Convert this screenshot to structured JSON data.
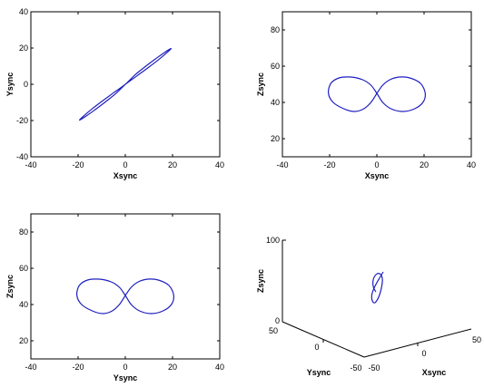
{
  "figure": {
    "line_color": "#1f1fbf"
  },
  "chart_data": [
    {
      "type": "line",
      "xlabel": "Xsync",
      "ylabel": "Ysync",
      "xlim": [
        -40,
        40
      ],
      "ylim": [
        -40,
        40
      ],
      "xticks": [
        "-40",
        "-20",
        "0",
        "20",
        "40"
      ],
      "yticks": [
        "-40",
        "-20",
        "0",
        "20",
        "40"
      ],
      "series": [
        {
          "x": [
            0,
            4.9,
            9.7,
            14.1,
            17.4,
            19.2,
            19.1,
            17.0,
            13.4,
            8.9,
            4.2,
            0,
            -4.9,
            -9.7,
            -14.1,
            -17.4,
            -19.2,
            -19.1,
            -17.0,
            -13.4,
            -8.9,
            -4.2,
            0
          ],
          "y": [
            0,
            4.6,
            9.2,
            13.6,
            17.2,
            19.4,
            19.6,
            17.9,
            14.6,
            10.2,
            5.3,
            0,
            -4.6,
            -9.2,
            -13.6,
            -17.2,
            -19.4,
            -19.6,
            -17.9,
            -14.6,
            -10.2,
            -5.3,
            0
          ]
        }
      ]
    },
    {
      "type": "line",
      "xlabel": "Xsync",
      "ylabel": "Zsync",
      "xlim": [
        -40,
        40
      ],
      "ylim": [
        10,
        90
      ],
      "xticks": [
        "-40",
        "-20",
        "0",
        "20",
        "40"
      ],
      "yticks": [
        "20",
        "40",
        "60",
        "80"
      ],
      "series": [
        {
          "x": [
            0,
            2.5,
            5.5,
            9.5,
            14.0,
            18.5,
            20.5,
            19.5,
            16.0,
            11.0,
            6.0,
            2.5,
            0,
            -2.5,
            -6.0,
            -11.0,
            -16.0,
            -19.5,
            -20.5,
            -18.5,
            -14.0,
            -9.5,
            -5.5,
            -2.5,
            0
          ],
          "y": [
            45,
            49.5,
            52.5,
            54.0,
            53.5,
            50.5,
            45,
            40.0,
            36.5,
            35.0,
            36.5,
            40.0,
            45,
            49.5,
            52.5,
            54.0,
            53.5,
            50.5,
            45,
            40.0,
            36.5,
            35.0,
            36.5,
            40.0,
            45
          ]
        }
      ]
    },
    {
      "type": "line",
      "xlabel": "Ysync",
      "ylabel": "Zsync",
      "xlim": [
        -40,
        40
      ],
      "ylim": [
        10,
        90
      ],
      "xticks": [
        "-40",
        "-20",
        "0",
        "20",
        "40"
      ],
      "yticks": [
        "20",
        "40",
        "60",
        "80"
      ],
      "series": [
        {
          "x": [
            0,
            2.5,
            5.5,
            9.5,
            14.0,
            18.5,
            20.5,
            19.5,
            16.0,
            11.0,
            6.0,
            2.5,
            0,
            -2.5,
            -6.0,
            -11.0,
            -16.0,
            -19.5,
            -20.5,
            -18.5,
            -14.0,
            -9.5,
            -5.5,
            -2.5,
            0
          ],
          "y": [
            45,
            49.5,
            52.5,
            54.0,
            53.5,
            50.5,
            45,
            40.0,
            36.5,
            35.0,
            36.5,
            40.0,
            45,
            49.5,
            52.5,
            54.0,
            53.5,
            50.5,
            45,
            40.0,
            36.5,
            35.0,
            36.5,
            40.0,
            45
          ]
        }
      ]
    },
    {
      "type": "line3d",
      "xlabel": "Xsync",
      "ylabel": "Ysync",
      "zlabel": "Zsync",
      "xlim": [
        -50,
        50
      ],
      "ylim": [
        -50,
        50
      ],
      "zlim": [
        0,
        100
      ],
      "xticks": [
        "-50",
        "0",
        "50"
      ],
      "yticks": [
        "50",
        "0",
        "-50"
      ],
      "zticks": [
        "0",
        "100"
      ]
    }
  ]
}
